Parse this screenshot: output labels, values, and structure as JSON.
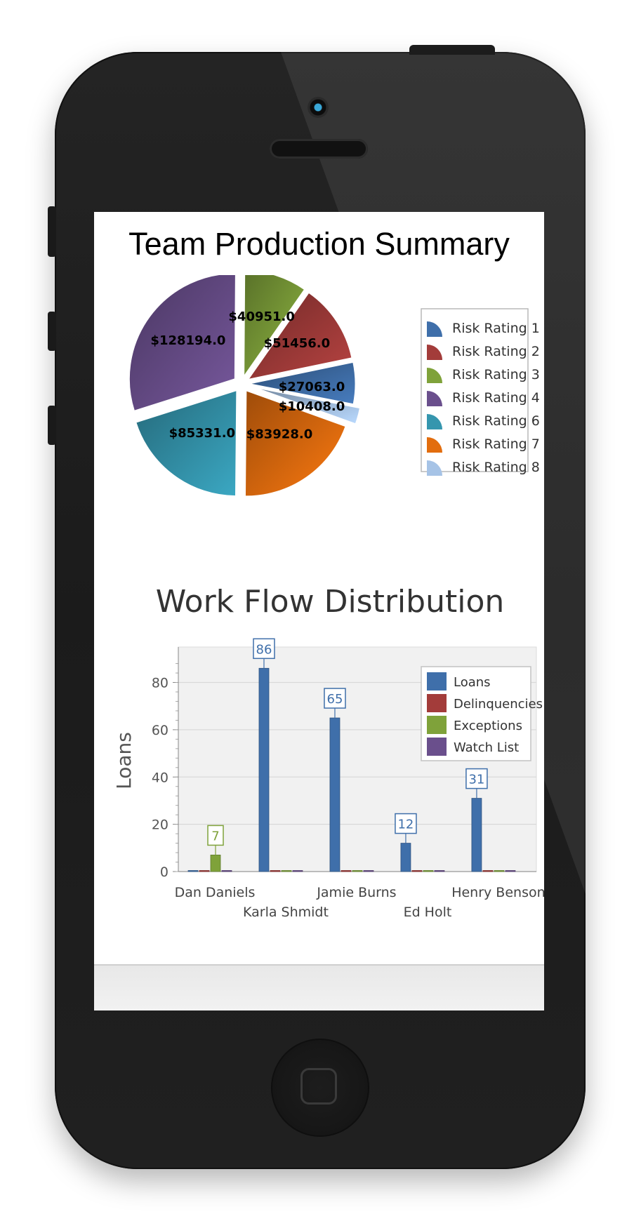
{
  "page_title": "Team Production Summary",
  "chart_data": [
    {
      "type": "pie",
      "title": "",
      "slices": [
        {
          "label": "Risk Rating 1",
          "value": 27063.0,
          "label_text": "$27063.0",
          "color": "#3f6faa"
        },
        {
          "label": "Risk Rating 8",
          "value": 10408.0,
          "label_text": "$10408.0",
          "color": "#a6c3e6"
        },
        {
          "label": "Risk Rating 7",
          "value": 83928.0,
          "label_text": "$83928.0",
          "color": "#e26d0e"
        },
        {
          "label": "Risk Rating 6",
          "value": 85331.0,
          "label_text": "$85331.0",
          "color": "#3596ae"
        },
        {
          "label": "Risk Rating 4",
          "value": 128194.0,
          "label_text": "$128194.0",
          "color": "#6a4f8c"
        },
        {
          "label": "Risk Rating 3",
          "value": 40951.0,
          "label_text": "$40951.0",
          "color": "#7fa23a"
        },
        {
          "label": "Risk Rating 2",
          "value": 51456.0,
          "label_text": "$51456.0",
          "color": "#a33c3a"
        }
      ],
      "legend": {
        "position": "right",
        "entries": [
          {
            "label": "Risk Rating 1",
            "color": "#3f6faa"
          },
          {
            "label": "Risk Rating 2",
            "color": "#a33c3a"
          },
          {
            "label": "Risk Rating 3",
            "color": "#7fa23a"
          },
          {
            "label": "Risk Rating 4",
            "color": "#6a4f8c"
          },
          {
            "label": "Risk Rating 6",
            "color": "#3596ae"
          },
          {
            "label": "Risk Rating 7",
            "color": "#e26d0e"
          },
          {
            "label": "Risk Rating 8",
            "color": "#a6c3e6"
          }
        ]
      }
    },
    {
      "type": "bar",
      "title": "Work Flow Distribution",
      "ylabel": "Loans",
      "xlabel": "",
      "ylim": [
        0,
        95
      ],
      "yticks": [
        0,
        20,
        40,
        60,
        80
      ],
      "grid": true,
      "categories": [
        "Dan Daniels",
        "Karla Shmidt",
        "Jamie Burns",
        "Ed Holt",
        "Henry Benson"
      ],
      "series": [
        {
          "name": "Loans",
          "color": "#3f6faa",
          "values": [
            0,
            86,
            65,
            12,
            31
          ]
        },
        {
          "name": "Delinquencies",
          "color": "#a33c3a",
          "values": [
            0,
            0,
            0,
            0,
            0
          ]
        },
        {
          "name": "Exceptions",
          "color": "#7fa23a",
          "values": [
            7,
            0,
            0,
            0,
            0
          ]
        },
        {
          "name": "Watch List",
          "color": "#6a4f8c",
          "values": [
            0,
            0,
            0,
            0,
            0
          ]
        }
      ],
      "data_labels": [
        {
          "category": "Dan Daniels",
          "series": "Exceptions",
          "text": "7"
        },
        {
          "category": "Karla Shmidt",
          "series": "Loans",
          "text": "86"
        },
        {
          "category": "Jamie Burns",
          "series": "Loans",
          "text": "65"
        },
        {
          "category": "Ed Holt",
          "series": "Loans",
          "text": "12"
        },
        {
          "category": "Henry Benson",
          "series": "Loans",
          "text": "31"
        }
      ],
      "legend": {
        "position": "top-right",
        "entries": [
          {
            "label": "Loans",
            "color": "#3f6faa"
          },
          {
            "label": "Delinquencies",
            "color": "#a33c3a"
          },
          {
            "label": "Exceptions",
            "color": "#7fa23a"
          },
          {
            "label": "Watch List",
            "color": "#6a4f8c"
          }
        ]
      }
    }
  ]
}
